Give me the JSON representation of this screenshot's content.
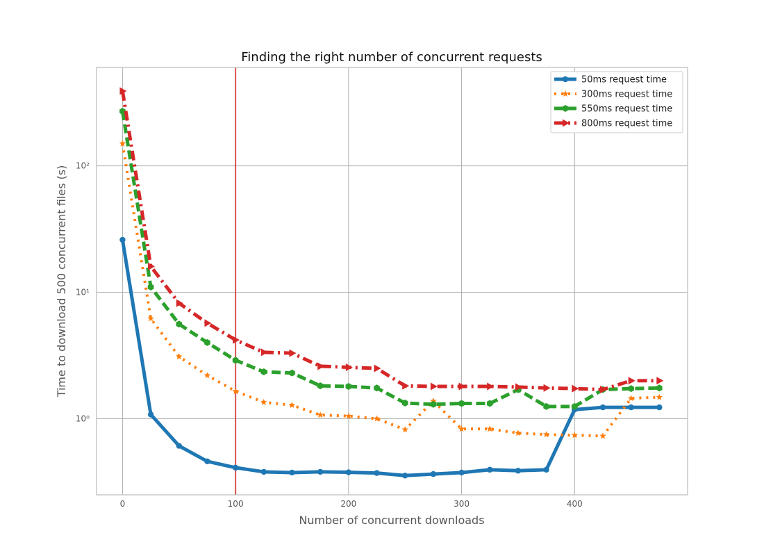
{
  "chart_data": {
    "type": "line",
    "title": "Finding the right number of concurrent requests",
    "xlabel": "Number of concurrent downloads",
    "ylabel": "Time to download 500 concurrent files (s)",
    "xlim": [
      -23,
      500
    ],
    "ylim": [
      0.25,
      600
    ],
    "yscale": "log",
    "grid": true,
    "legend_position": "top-right",
    "x_ticks": [
      0,
      100,
      200,
      300,
      400
    ],
    "y_ticks": [
      {
        "value": 1,
        "label": "10⁰"
      },
      {
        "value": 10,
        "label": "10¹"
      },
      {
        "value": 100,
        "label": "10²"
      }
    ],
    "vertical_marker": {
      "x": 100,
      "color": "#d9534f"
    },
    "x": [
      0,
      25,
      50,
      75,
      100,
      125,
      150,
      175,
      200,
      225,
      250,
      275,
      300,
      325,
      350,
      375,
      400,
      425,
      450,
      475
    ],
    "series": [
      {
        "name": "50ms request time",
        "color": "#1f77b4",
        "dash": "solid",
        "marker": "circle",
        "values": [
          26,
          1.08,
          0.61,
          0.46,
          0.41,
          0.38,
          0.375,
          0.38,
          0.377,
          0.372,
          0.355,
          0.365,
          0.375,
          0.395,
          0.388,
          0.395,
          1.18,
          1.23,
          1.23,
          1.23
        ]
      },
      {
        "name": "300ms request time",
        "color": "#ff7f0e",
        "dash": "dotted",
        "marker": "star",
        "values": [
          150,
          6.2,
          3.1,
          2.2,
          1.65,
          1.35,
          1.28,
          1.07,
          1.05,
          1.0,
          0.82,
          1.38,
          0.83,
          0.83,
          0.77,
          0.75,
          0.74,
          0.73,
          1.45,
          1.48
        ]
      },
      {
        "name": "550ms request time",
        "color": "#2ca02c",
        "dash": "dashed",
        "marker": "hexagon",
        "values": [
          270,
          11,
          5.6,
          4.0,
          2.9,
          2.35,
          2.3,
          1.82,
          1.8,
          1.75,
          1.33,
          1.3,
          1.32,
          1.32,
          1.7,
          1.25,
          1.25,
          1.7,
          1.73,
          1.75
        ]
      },
      {
        "name": "800ms request time",
        "color": "#d62728",
        "dash": "dashdot",
        "marker": "triangle-right",
        "values": [
          390,
          16,
          8.2,
          5.7,
          4.2,
          3.35,
          3.3,
          2.6,
          2.55,
          2.5,
          1.82,
          1.8,
          1.8,
          1.8,
          1.78,
          1.75,
          1.73,
          1.7,
          2.0,
          2.0
        ]
      }
    ]
  }
}
